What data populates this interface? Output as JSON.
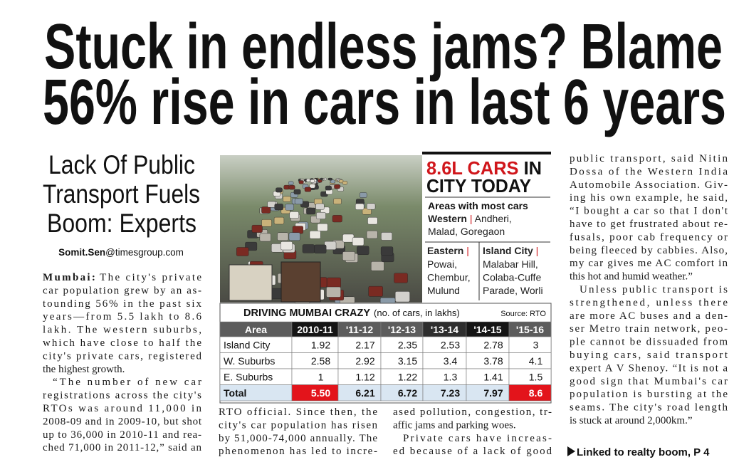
{
  "headline": {
    "line1": "Stuck in endless jams? Blame",
    "line2": "56% rise in cars in last 6 years"
  },
  "subhead": [
    "Lack Of Public",
    "Transport Fuels",
    "Boom: Experts"
  ],
  "byline": {
    "name": "Somit.Sen",
    "domain": "@timesgroup.com"
  },
  "infobox": {
    "title_red": "8.6L CARS",
    "title_rest": " IN",
    "title_line2": "CITY TODAY",
    "heading": "Areas with most cars",
    "western_label": "Western",
    "western": [
      "Andheri,",
      "Malad, Goregaon"
    ],
    "eastern_label": "Eastern",
    "eastern": [
      "Powai,",
      "Chembur,",
      "Mulund"
    ],
    "island_label": "Island City",
    "island": [
      "Malabar Hill,",
      "Colaba-Cuffe",
      "Parade, Worli"
    ]
  },
  "table": {
    "title": "DRIVING MUMBAI CRAZY",
    "unit": "(no. of cars, in lakhs)",
    "source": "Source: RTO",
    "header": [
      "Area",
      "2010-11",
      "'11-12",
      "'12-13",
      "'13-14",
      "'14-15",
      "'15-16"
    ],
    "rows": [
      [
        "Island City",
        "1.92",
        "2.17",
        "2.35",
        "2.53",
        "2.78",
        "3"
      ],
      [
        "W. Suburbs",
        "2.58",
        "2.92",
        "3.15",
        "3.4",
        "3.78",
        "4.1"
      ],
      [
        "E. Suburbs",
        "1",
        "1.12",
        "1.22",
        "1.3",
        "1.41",
        "1.5"
      ],
      [
        "Total",
        "5.50",
        "6.21",
        "6.72",
        "7.23",
        "7.97",
        "8.6"
      ]
    ]
  },
  "body": {
    "lead": "Mumbai:",
    "col1": [
      [
        "The city's private",
        "car population grew by an as-",
        "tounding 56% in the past six",
        "years—from 5.5 lakh to 8.6",
        "lakh. The western suburbs,",
        "which have close to half the",
        "city's private cars, registered",
        "the highest growth."
      ],
      [
        "“The number of new car",
        "registrations across the city's",
        "RTOs was around 11,000 in",
        "2008-09 and in 2009-10, but shot",
        "up to 36,000 in 2010-11 and rea-",
        "ched 71,000 in 2011-12,” said an"
      ]
    ],
    "col2": [
      [
        "RTO official. Since then, the",
        "city's car population has risen",
        "by 51,000-74,000 annually. The",
        "phenomenon has led to incre-"
      ]
    ],
    "col3": [
      [
        "ased pollution, congestion, tr-",
        "affic jams and parking woes."
      ],
      [
        "Private cars have increas-",
        "ed because of a lack of good"
      ]
    ],
    "col4": [
      [
        "public transport, said Nitin",
        "Dossa of the Western India",
        "Automobile Association. Giv-",
        "ing his own example, he said,",
        "“I bought a car so that I don't",
        "have to get frustrated about re-",
        "fusals, poor cab frequency or",
        "being fleeced by cabbies. Also,",
        "my car gives me AC comfort in",
        "this hot and humid weather.”"
      ],
      [
        "Unless public transport is",
        "strengthened, unless there",
        "are more AC buses and a den-",
        "ser Metro train network, peo-",
        "ple cannot be dissuaded from",
        "buying cars, said transport",
        "expert A V Shenoy. “It is not a",
        "good sign that Mumbai's car",
        "population is bursting at the",
        "seams. The city's road length",
        "is stuck at around 2,000km.”"
      ]
    ]
  },
  "footer": "Linked to realty boom, P 4"
}
